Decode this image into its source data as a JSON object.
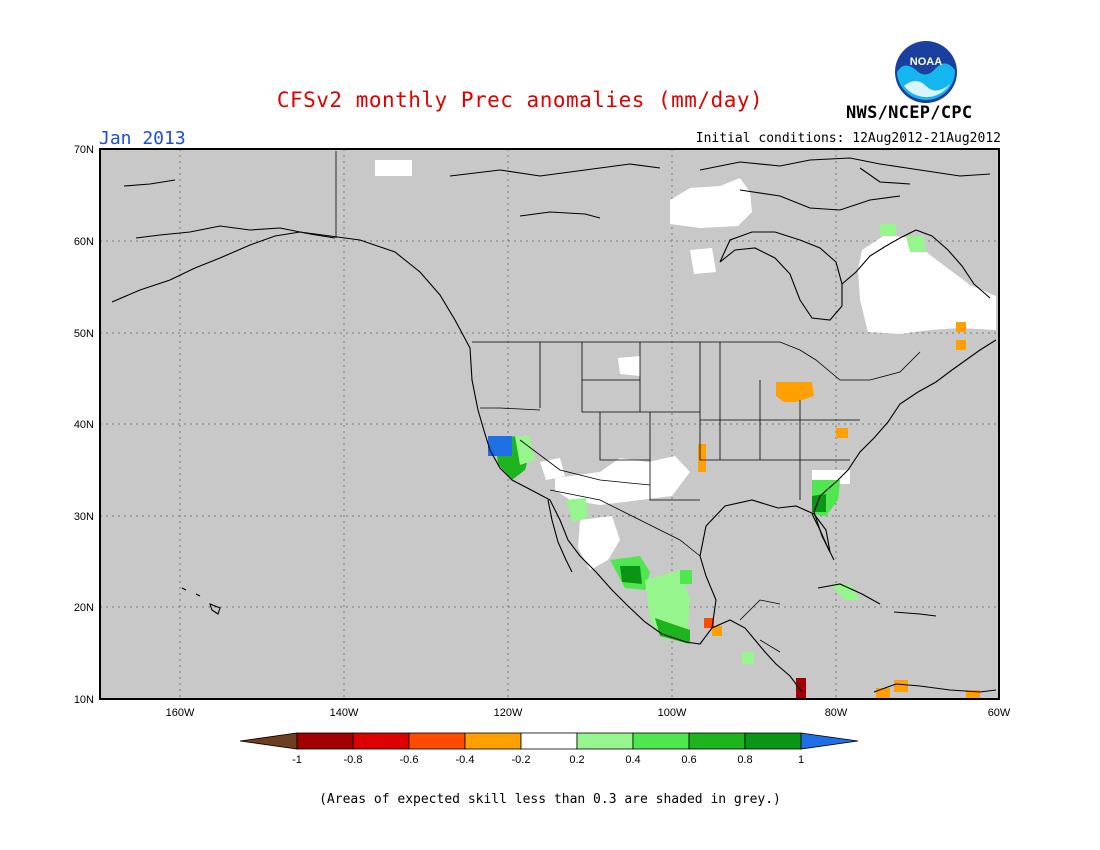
{
  "header": {
    "title": "CFSv2 monthly Prec anomalies (mm/day)",
    "organization": "NWS/NCEP/CPC",
    "logo_text": "NOAA",
    "valid_month": "Jan 2013",
    "initial_conditions": "Initial conditions: 12Aug2012-21Aug2012"
  },
  "map": {
    "region": "North America",
    "lon_range": [
      -170,
      -60
    ],
    "lat_range": [
      10,
      70
    ],
    "lat_ticks": [
      "70N",
      "60N",
      "50N",
      "40N",
      "30N",
      "20N",
      "10N"
    ],
    "lon_ticks": [
      "160W",
      "140W",
      "120W",
      "100W",
      "80W",
      "60W"
    ],
    "background_color": "#c8c8c8"
  },
  "colorbar": {
    "labels": [
      "-1",
      "-0.8",
      "-0.6",
      "-0.4",
      "-0.2",
      "0.2",
      "0.4",
      "0.6",
      "0.8",
      "1"
    ],
    "colors": {
      "lt_-1": "#6e3e20",
      "-1_-0.8": "#a00000",
      "-0.8_-0.6": "#dc0000",
      "-0.6_-0.4": "#ff4a00",
      "-0.4_-0.2": "#ffa000",
      "-0.2_0.2": "#ffffff",
      "0.2_0.4": "#96f58c",
      "0.4_0.6": "#50e650",
      "0.6_0.8": "#1eb41e",
      "0.8_1": "#0a9614",
      "gt_1": "#1e6ee6"
    }
  },
  "footnote": "(Areas of expected skill less than 0.3 are shaded in grey.)"
}
